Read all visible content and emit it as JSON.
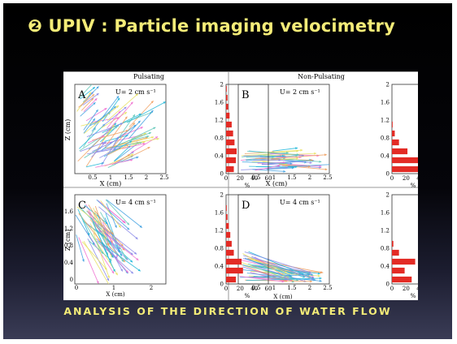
{
  "slide": {
    "title": "❷ UPIV : Particle imaging velocimetry",
    "caption": "ANALYSIS OF THE DIRECTION OF WATER FLOW"
  },
  "figure": {
    "column_titles": [
      "Pulsating",
      "Non-Pulsating"
    ],
    "panels": [
      {
        "letter": "A",
        "velocity": "U= 2 cm s⁻¹"
      },
      {
        "letter": "B",
        "velocity": "U= 2 cm s⁻¹"
      },
      {
        "letter": "C",
        "velocity": "U= 4 cm s⁻¹"
      },
      {
        "letter": "D",
        "velocity": "U= 4 cm s⁻¹"
      }
    ]
  },
  "chart_data": [
    {
      "panel": "A",
      "type": "bar",
      "orientation": "horizontal",
      "categories": [
        "0",
        "0.2",
        "0.4",
        "0.6",
        "0.8",
        "1",
        "1.2",
        "1.4",
        "1.6",
        "1.8",
        "2"
      ],
      "values": [
        11,
        14,
        15,
        12,
        10,
        8,
        5,
        3,
        2,
        1,
        0
      ],
      "xlabel": "%",
      "xlim": [
        0,
        60
      ],
      "ylim": [
        0,
        2
      ],
      "x_ticks": [
        "0",
        "20",
        "40",
        "60"
      ],
      "y_ticks": [
        "0",
        "0.4",
        "0.8",
        "1.2",
        "1.6",
        "2"
      ]
    },
    {
      "panel": "B",
      "type": "bar",
      "orientation": "horizontal",
      "categories": [
        "0",
        "0.2",
        "0.4",
        "0.6",
        "0.8",
        "1"
      ],
      "values": [
        57,
        38,
        22,
        10,
        4,
        1
      ],
      "xlabel": "%",
      "xlim": [
        0,
        60
      ],
      "ylim": [
        0,
        2
      ],
      "x_ticks": [
        "0",
        "20",
        "40",
        "60"
      ],
      "y_ticks": [
        "0",
        "0.4",
        "0.8",
        "1.2",
        "1.6",
        "2"
      ]
    },
    {
      "panel": "C",
      "type": "bar",
      "orientation": "horizontal",
      "categories": [
        "0",
        "0.2",
        "0.4",
        "0.6",
        "0.8",
        "1",
        "1.2",
        "1.4",
        "1.6"
      ],
      "values": [
        14,
        24,
        22,
        11,
        8,
        6,
        4,
        2,
        1
      ],
      "xlabel": "%",
      "xlim": [
        0,
        60
      ],
      "ylim": [
        0,
        2
      ],
      "x_ticks": [
        "0",
        "20",
        "40",
        "60"
      ],
      "y_ticks": [
        "0",
        "0.4",
        "0.8",
        "1.2",
        "1.6",
        "2"
      ]
    },
    {
      "panel": "D",
      "type": "bar",
      "orientation": "horizontal",
      "categories": [
        "0",
        "0.2",
        "0.4",
        "0.6",
        "0.8"
      ],
      "values": [
        28,
        18,
        33,
        10,
        2
      ],
      "xlabel": "%",
      "xlim": [
        0,
        60
      ],
      "ylim": [
        0,
        2
      ],
      "x_ticks": [
        "0",
        "20",
        "40",
        "60"
      ],
      "y_ticks": [
        "0",
        "0.4",
        "0.8",
        "1.2",
        "1.6",
        "2"
      ]
    }
  ],
  "axes": {
    "xlabel": "X (cm)",
    "ylabel": "Z (cm)",
    "x_ticks_top": [
      "0.5",
      "1",
      "1.5",
      "2",
      "2.5"
    ],
    "x_ticks_c": [
      "0",
      "1",
      "2"
    ],
    "x_ticks_d": [
      "0.5",
      "1",
      "1.5",
      "2",
      "2.5"
    ],
    "z_ticks": [
      "0",
      "0.4",
      "0.8",
      "1.2",
      "1.6",
      "2"
    ],
    "z_ticks_c": [
      "1.6",
      "1.2",
      "0.8",
      "0.4",
      "0"
    ]
  },
  "colors": {
    "bar": "#e32b25",
    "title": "#f4ec78",
    "arrow_palette": [
      "#20b7d8",
      "#f06fd0",
      "#e8e060",
      "#8a8ae8",
      "#3fa0e0",
      "#f0a060",
      "#60c8b8"
    ]
  }
}
